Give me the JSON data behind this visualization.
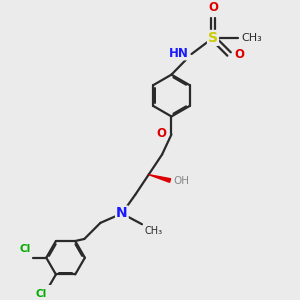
{
  "bg_color": "#ebebeb",
  "bond_color": "#2a2a2a",
  "bond_width": 1.6,
  "aoff": 0.055,
  "N_color": "#1a1aff",
  "O_color": "#dd0000",
  "S_color": "#cccc00",
  "Cl_color": "#00aa00",
  "H_color": "#888888",
  "fs": 8.5,
  "xlim": [
    0,
    10
  ],
  "ylim": [
    0,
    10
  ]
}
